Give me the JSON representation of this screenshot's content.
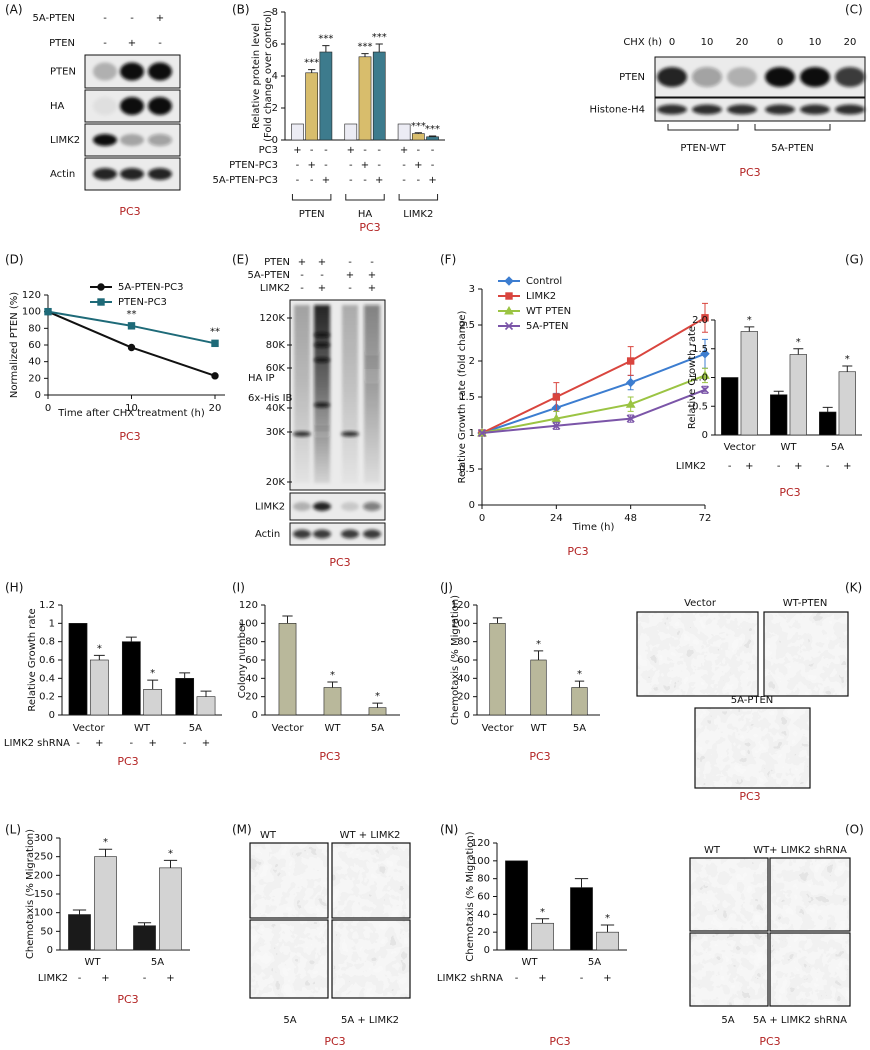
{
  "chart_data": [
    {
      "type": "bar",
      "panel": "(B)",
      "cell_line": "PC3",
      "ylabel": [
        "Relative protein level",
        "(Fold change over control)"
      ],
      "categories": [
        "PTEN",
        "HA",
        "LIMK2"
      ],
      "series": [
        {
          "color": "#ececf4",
          "values": [
            1,
            1,
            1
          ]
        },
        {
          "color": "#d8bd6c",
          "values": [
            4.2,
            5.2,
            0.4
          ],
          "errors": [
            0.2,
            0.2,
            0.05
          ],
          "marks": [
            "***",
            "***",
            "***"
          ]
        },
        {
          "color": "#3d7b8d",
          "values": [
            5.5,
            5.5,
            0.2
          ],
          "errors": [
            0.4,
            0.5,
            0.05
          ],
          "marks": [
            "***",
            "***",
            "***"
          ]
        }
      ],
      "sign_rows": [
        {
          "name": "PC3",
          "signs": [
            "+",
            "-",
            "-",
            "+",
            "-",
            "-",
            "+",
            "-",
            "-"
          ]
        },
        {
          "name": "PTEN-PC3",
          "signs": [
            "-",
            "+",
            "-",
            "-",
            "+",
            "-",
            "-",
            "+",
            "-"
          ]
        },
        {
          "name": "5A-PTEN-PC3",
          "signs": [
            "-",
            "-",
            "+",
            "-",
            "-",
            "+",
            "-",
            "-",
            "+"
          ]
        }
      ],
      "ylim": [
        0,
        8
      ],
      "yticks": [
        0,
        2,
        4,
        6,
        8
      ]
    },
    {
      "type": "line",
      "panel": "(D)",
      "cell_line": "PC3",
      "ylabel": [
        "Normalized PTEN (%)"
      ],
      "xlabel": "Time after CHX treatment (h)",
      "x": [
        0,
        10,
        20
      ],
      "xlim": [
        0,
        20
      ],
      "xticks": [
        0,
        10,
        20
      ],
      "ylim": [
        0,
        120
      ],
      "yticks": [
        0,
        20,
        40,
        60,
        80,
        100,
        120
      ],
      "legend": "upper right",
      "series": [
        {
          "name": "5A-PTEN-PC3",
          "color": "#111111",
          "marker": "circle",
          "values": [
            100,
            57,
            23
          ],
          "errors": [
            null,
            2,
            null
          ]
        },
        {
          "name": "PTEN-PC3",
          "color": "#1e6a78",
          "marker": "square",
          "values": [
            100,
            83,
            62
          ],
          "marks": [
            null,
            "**",
            "**"
          ]
        }
      ]
    },
    {
      "type": "line",
      "panel": "(F)",
      "cell_line": "PC3",
      "ylabel": [
        "Relative Growth rate (fold change)"
      ],
      "xlabel": "Time (h)",
      "x": [
        0,
        24,
        48,
        72
      ],
      "xlim": [
        0,
        72
      ],
      "xticks": [
        0,
        24,
        48,
        72
      ],
      "ylim": [
        0,
        3
      ],
      "yticks": [
        0,
        0.5,
        1,
        1.5,
        2,
        2.5,
        3
      ],
      "legend": "upper left",
      "series": [
        {
          "name": "Control",
          "color": "#3c7dd0",
          "marker": "diamond",
          "values": [
            1,
            1.35,
            1.7,
            2.1
          ],
          "errors": [
            null,
            0.2,
            0.1,
            0.2
          ]
        },
        {
          "name": "LIMK2",
          "color": "#d9453e",
          "marker": "square",
          "values": [
            1,
            1.5,
            2,
            2.6
          ],
          "errors": [
            null,
            0.2,
            0.2,
            0.2
          ]
        },
        {
          "name": "WT PTEN",
          "color": "#9bc443",
          "marker": "triangle",
          "values": [
            1,
            1.2,
            1.4,
            1.8
          ],
          "errors": [
            null,
            0.1,
            0.1,
            0.1
          ]
        },
        {
          "name": "5A-PTEN",
          "color": "#7b55a8",
          "marker": "x",
          "values": [
            1,
            1.1,
            1.2,
            1.6
          ],
          "errors": [
            null,
            0.05,
            0.05,
            0.05
          ]
        }
      ]
    },
    {
      "type": "bar",
      "panel": "(G)",
      "cell_line": "PC3",
      "ylabel": [
        "Relative Growth rate"
      ],
      "categories": [
        "Vector",
        "WT",
        "5A"
      ],
      "series": [
        {
          "color": "#000000",
          "values": [
            1,
            0.7,
            0.4
          ],
          "errors": [
            null,
            0.06,
            0.08
          ]
        },
        {
          "color": "#d3d3d3",
          "values": [
            1.8,
            1.4,
            1.1
          ],
          "errors": [
            0.08,
            0.1,
            0.1
          ],
          "marks": [
            "*",
            "*",
            "*"
          ]
        }
      ],
      "sign_rows": [
        {
          "name": "LIMK2",
          "signs": [
            "-",
            "+",
            "-",
            "+",
            "-",
            "+"
          ]
        }
      ],
      "ylim": [
        0,
        2
      ],
      "yticks": [
        0,
        0.5,
        {
          "value": 1,
          "label": "1.0"
        },
        1.5,
        {
          "value": 2,
          "label": "2.0"
        }
      ]
    },
    {
      "type": "bar",
      "panel": "(H)",
      "cell_line": "PC3",
      "ylabel": [
        "Relative Growth rate"
      ],
      "categories": [
        "Vector",
        "WT",
        "5A"
      ],
      "series": [
        {
          "color": "#000000",
          "values": [
            1,
            0.8,
            0.4
          ],
          "errors": [
            null,
            0.05,
            0.06
          ]
        },
        {
          "color": "#d3d3d3",
          "values": [
            0.6,
            0.28,
            0.2
          ],
          "errors": [
            0.05,
            0.1,
            0.06
          ],
          "marks": [
            "*",
            "*",
            null
          ]
        }
      ],
      "sign_rows": [
        {
          "name": "LIMK2 shRNA",
          "signs": [
            "-",
            "+",
            "-",
            "+",
            "-",
            "+"
          ]
        }
      ],
      "ylim": [
        0,
        1.2
      ],
      "yticks": [
        0,
        0.2,
        0.4,
        0.6,
        0.8,
        1,
        1.2
      ]
    },
    {
      "type": "bar",
      "panel": "(I)",
      "cell_line": "PC3",
      "ylabel": [
        "Colony number"
      ],
      "categories": [
        "Vector",
        "WT",
        "5A"
      ],
      "series": [
        {
          "color": "#b9b89b",
          "values": [
            100,
            30,
            8
          ],
          "errors": [
            8,
            6,
            5
          ],
          "marks": [
            null,
            "*",
            "*"
          ]
        }
      ],
      "ylim": [
        0,
        120
      ],
      "yticks": [
        0,
        20,
        40,
        60,
        80,
        100,
        120
      ]
    },
    {
      "type": "bar",
      "panel": "(J)",
      "cell_line": "PC3",
      "ylabel": [
        "Chemotaxis (% Migration)"
      ],
      "categories": [
        "Vector",
        "WT",
        "5A"
      ],
      "series": [
        {
          "color": "#b9b89b",
          "values": [
            100,
            60,
            30
          ],
          "errors": [
            6,
            10,
            7
          ],
          "marks": [
            null,
            "*",
            "*"
          ]
        }
      ],
      "ylim": [
        0,
        120
      ],
      "yticks": [
        0,
        20,
        40,
        60,
        80,
        100,
        120
      ]
    },
    {
      "type": "bar",
      "panel": "(L)",
      "cell_line": "PC3",
      "ylabel": [
        "Chemotaxis (% Migration)"
      ],
      "categories": [
        "WT",
        "5A"
      ],
      "series": [
        {
          "color": "#1a1a1a",
          "values": [
            95,
            65
          ],
          "errors": [
            12,
            8
          ]
        },
        {
          "color": "#d3d3d3",
          "values": [
            250,
            220
          ],
          "errors": [
            20,
            20
          ],
          "marks": [
            "*",
            "*"
          ]
        }
      ],
      "sign_rows": [
        {
          "name": "LIMK2",
          "signs": [
            "-",
            "+",
            "-",
            "+"
          ]
        }
      ],
      "ylim": [
        0,
        300
      ],
      "yticks": [
        0,
        50,
        100,
        150,
        200,
        250,
        300
      ]
    },
    {
      "type": "bar",
      "panel": "(N)",
      "cell_line": "PC3",
      "ylabel": [
        "Chemotaxis (% Migration)"
      ],
      "categories": [
        "WT",
        "5A"
      ],
      "series": [
        {
          "color": "#000000",
          "values": [
            100,
            70
          ],
          "errors": [
            null,
            10
          ]
        },
        {
          "color": "#d3d3d3",
          "values": [
            30,
            20
          ],
          "errors": [
            5,
            8
          ],
          "marks": [
            "*",
            "*"
          ]
        }
      ],
      "sign_rows": [
        {
          "name": "LIMK2 shRNA",
          "signs": [
            "-",
            "+",
            "-",
            "+"
          ]
        }
      ],
      "ylim": [
        0,
        120
      ],
      "yticks": [
        0,
        20,
        40,
        60,
        80,
        100,
        120
      ]
    }
  ],
  "figures": [
    {
      "panel": "(A)",
      "cell_line": "PC3",
      "header_rows": [
        {
          "name": "5A-PTEN",
          "signs": [
            "-",
            "-",
            "+"
          ]
        },
        {
          "name": "PTEN",
          "signs": [
            "-",
            "+",
            "-"
          ]
        }
      ],
      "rows": [
        "PTEN",
        "HA",
        "LIMK2",
        "Actin"
      ]
    },
    {
      "panel": "(C)",
      "cell_line": "PC3",
      "header": "CHX (h)",
      "lanes": [
        "0",
        "10",
        "20",
        "0",
        "10",
        "20"
      ],
      "rows": [
        "PTEN",
        "Histone-H4"
      ],
      "groups": [
        "PTEN-WT",
        "5A-PTEN"
      ]
    },
    {
      "panel": "(E)",
      "cell_line": "PC3",
      "header_rows": [
        {
          "name": "PTEN",
          "signs": [
            "+",
            "+",
            "-",
            "-"
          ]
        },
        {
          "name": "5A-PTEN",
          "signs": [
            "-",
            "-",
            "+",
            "+"
          ]
        },
        {
          "name": "LIMK2",
          "signs": [
            "-",
            "+",
            "-",
            "+"
          ]
        }
      ],
      "markers": [
        "120K",
        "80K",
        "60K",
        "40K",
        "30K",
        "20K"
      ],
      "blot_label": [
        "HA IP",
        "6x-His IB"
      ],
      "rows": [
        "LIMK2",
        "Actin"
      ]
    },
    {
      "panel": "(K)",
      "cell_line": "PC3",
      "images": [
        "Vector",
        "WT-PTEN",
        "5A-PTEN"
      ]
    },
    {
      "panel": "(M)",
      "cell_line": "PC3",
      "images": [
        "WT",
        "WT + LIMK2",
        "5A",
        "5A + LIMK2"
      ]
    },
    {
      "panel": "(O)",
      "cell_line": "PC3",
      "images": [
        "WT",
        "WT+ LIMK2 shRNA",
        "5A",
        "5A + LIMK2 shRNA"
      ]
    }
  ]
}
